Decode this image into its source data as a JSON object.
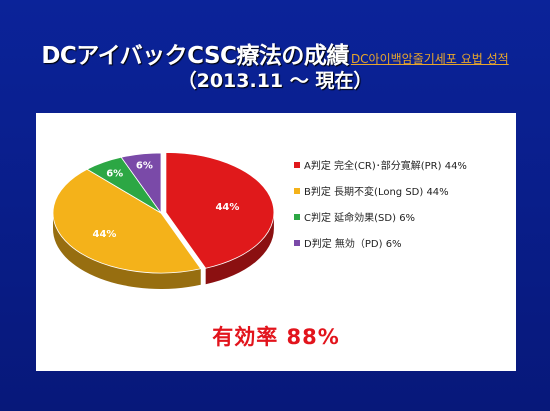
{
  "header": {
    "title": "DCアイバックCSC療法の成績",
    "title_korean": "DC아이백암줄기세포 요법 성적",
    "subtitle": "（2013.11 ～ 現在）"
  },
  "chart_data": {
    "type": "pie",
    "categories": [
      "A判定  完全(CR)･部分寛解(PR) 44%",
      "B判定  長期不変(Long SD) 44%",
      "C判定  延命効果(SD)  6%",
      "D判定  無効（PD)   6%"
    ],
    "values": [
      44,
      44,
      6,
      6
    ],
    "data_labels": [
      "44%",
      "44%",
      "6%",
      "6%"
    ],
    "colors": [
      "#e0191b",
      "#f4b21a",
      "#2ca744",
      "#7a4aa8"
    ],
    "legend_position": "right",
    "annotation": "有効率  88%"
  }
}
